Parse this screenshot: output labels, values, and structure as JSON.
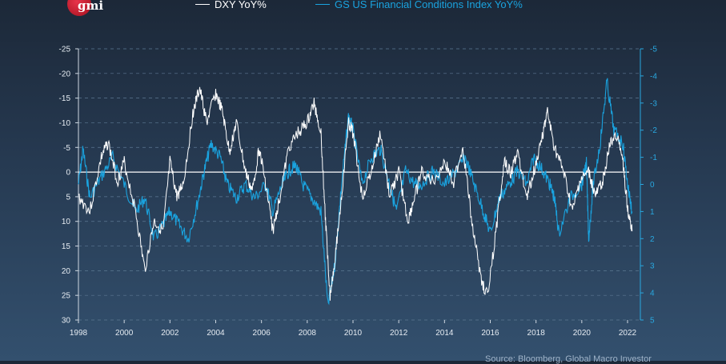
{
  "logo": {
    "text": "gmi"
  },
  "source": "Source: Bloomberg, Global Macro Investor",
  "colors": {
    "dxy": "#ffffff",
    "fci": "#1aa3df",
    "zero_line": "#ffffff"
  },
  "chart_data": {
    "type": "line",
    "title": "",
    "legend_placement": "top",
    "x_ticks": [
      "1998",
      "2000",
      "2002",
      "2004",
      "2006",
      "2008",
      "2010",
      "2012",
      "2014",
      "2016",
      "2018",
      "2020",
      "2022"
    ],
    "xlim": [
      1998,
      2022.6
    ],
    "left_axis": {
      "ticks": [
        "-25",
        "-20",
        "-15",
        "-10",
        "-5",
        "0",
        "5",
        "10",
        "15",
        "20",
        "25",
        "30"
      ],
      "ylim": [
        -25,
        30
      ],
      "inverted": true
    },
    "right_axis": {
      "ticks": [
        "-5",
        "-4",
        "-3",
        "-2",
        "-1",
        "0",
        "1",
        "2",
        "3",
        "4",
        "5"
      ],
      "ylim": [
        -5,
        5
      ],
      "inverted": true
    },
    "grid": "horizontal dashed",
    "series": [
      {
        "name": "DXY YoY%",
        "axis": "left",
        "x": [
          1998.0,
          1998.5,
          1999.0,
          1999.3,
          1999.7,
          2000.0,
          2000.5,
          2000.9,
          2001.3,
          2001.7,
          2002.0,
          2002.3,
          2002.6,
          2003.0,
          2003.3,
          2003.6,
          2004.0,
          2004.3,
          2004.6,
          2004.9,
          2005.3,
          2005.6,
          2005.9,
          2006.2,
          2006.5,
          2006.8,
          2007.2,
          2007.6,
          2008.0,
          2008.3,
          2008.6,
          2008.8,
          2009.0,
          2009.2,
          2009.5,
          2009.8,
          2010.0,
          2010.4,
          2010.8,
          2011.2,
          2011.6,
          2012.0,
          2012.4,
          2012.7,
          2013.0,
          2013.5,
          2014.0,
          2014.4,
          2014.8,
          2015.2,
          2015.6,
          2015.9,
          2016.3,
          2016.6,
          2016.9,
          2017.2,
          2017.6,
          2017.9,
          2018.3,
          2018.5,
          2018.8,
          2019.2,
          2019.6,
          2019.9,
          2020.3,
          2020.6,
          2020.9,
          2021.2,
          2021.5,
          2021.8,
          2022.0,
          2022.2
        ],
        "y": [
          5,
          8,
          -3,
          -6,
          2,
          -2,
          8,
          20,
          10,
          12,
          -2,
          5,
          2,
          -12,
          -17,
          -10,
          -16,
          -12,
          -4,
          -10,
          0,
          4,
          -5,
          3,
          12,
          5,
          -5,
          -8,
          -10,
          -14,
          -8,
          10,
          25,
          18,
          5,
          -10,
          -8,
          5,
          0,
          -8,
          5,
          0,
          10,
          5,
          0,
          2,
          -2,
          2,
          -5,
          10,
          22,
          25,
          10,
          -2,
          0,
          -4,
          5,
          0,
          -8,
          -12,
          -5,
          0,
          8,
          2,
          0,
          5,
          2,
          -5,
          -8,
          -2,
          7,
          12
        ]
      },
      {
        "name": "GS US Financial Conditions Index YoY%",
        "axis": "right",
        "x": [
          1998.0,
          1998.2,
          1998.5,
          1999.0,
          1999.5,
          2000.0,
          2000.5,
          2000.9,
          2001.3,
          2001.7,
          2002.0,
          2002.4,
          2002.8,
          2003.2,
          2003.5,
          2003.8,
          2004.2,
          2004.5,
          2004.9,
          2005.3,
          2005.7,
          2006.2,
          2006.5,
          2006.9,
          2007.2,
          2007.5,
          2007.8,
          2008.2,
          2008.6,
          2008.9,
          2009.2,
          2009.5,
          2009.8,
          2010.0,
          2010.4,
          2010.8,
          2011.2,
          2011.6,
          2011.9,
          2012.3,
          2012.7,
          2013.0,
          2013.5,
          2014.0,
          2014.5,
          2014.9,
          2015.3,
          2015.7,
          2016.0,
          2016.4,
          2016.8,
          2017.2,
          2017.6,
          2017.9,
          2018.3,
          2018.6,
          2018.8,
          2019.0,
          2019.5,
          2020.0,
          2020.2,
          2020.3,
          2020.5,
          2020.8,
          2021.1,
          2021.4,
          2021.8,
          2022.0,
          2022.2
        ],
        "y": [
          0,
          -1.3,
          0.5,
          -0.3,
          -1,
          0,
          1,
          0.5,
          2,
          1.5,
          1,
          1.5,
          2,
          0.7,
          -0.5,
          -1.5,
          -1,
          0,
          0.5,
          0,
          0.5,
          0,
          1,
          0,
          -0.5,
          -0.7,
          0,
          0.5,
          1,
          4.5,
          3,
          0,
          -2.5,
          -2,
          0,
          -1,
          -1.3,
          0,
          1,
          -0.5,
          0,
          0,
          -0.5,
          0,
          -0.5,
          -1,
          0,
          1,
          1.8,
          0.5,
          0,
          -0.5,
          0,
          -1,
          -0.5,
          0,
          0.5,
          1.8,
          0.5,
          0,
          -0.8,
          2,
          0,
          -1.5,
          -3.8,
          -2,
          -1.5,
          0,
          1
        ]
      }
    ]
  }
}
